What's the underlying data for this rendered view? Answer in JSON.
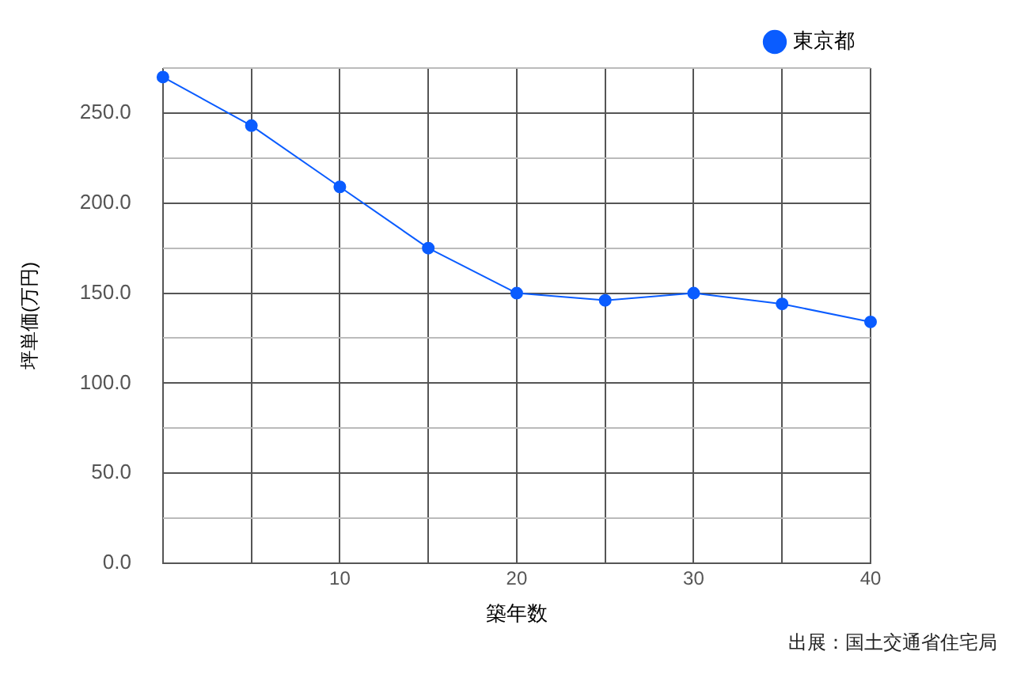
{
  "chart_data": {
    "type": "line",
    "xlabel": "築年数",
    "ylabel": "坪単価(万円)",
    "annotations": [
      "出展：国土交通省住宅局"
    ],
    "x": [
      0,
      5,
      10,
      15,
      20,
      25,
      30,
      35,
      40
    ],
    "series": [
      {
        "name": "東京都",
        "color": "#0a5cff",
        "values": [
          270,
          243,
          209,
          175,
          150,
          146,
          150,
          144,
          134
        ]
      }
    ],
    "xlim": [
      0,
      40
    ],
    "xticks": [
      {
        "value": 0,
        "label": null
      },
      {
        "value": 5,
        "label": null
      },
      10,
      {
        "value": 15,
        "label": null
      },
      20,
      {
        "value": 25,
        "label": null
      },
      30,
      {
        "value": 35,
        "label": null
      },
      40
    ],
    "ylim": [
      0,
      275
    ],
    "yticks": [
      {
        "value": 0,
        "label": "0.0"
      },
      {
        "value": 25,
        "label": null
      },
      {
        "value": 50,
        "label": "50.0"
      },
      {
        "value": 75,
        "label": null
      },
      {
        "value": 100,
        "label": "100.0"
      },
      {
        "value": 125,
        "label": null
      },
      {
        "value": 150,
        "label": "150.0"
      },
      {
        "value": 175,
        "label": null
      },
      {
        "value": 200,
        "label": "200.0"
      },
      {
        "value": 225,
        "label": null
      },
      {
        "value": 250,
        "label": "250.0"
      },
      {
        "value": 275,
        "label": null
      }
    ],
    "grid": true,
    "legend": "top right",
    "marker": "circle",
    "line_style": "solid"
  }
}
